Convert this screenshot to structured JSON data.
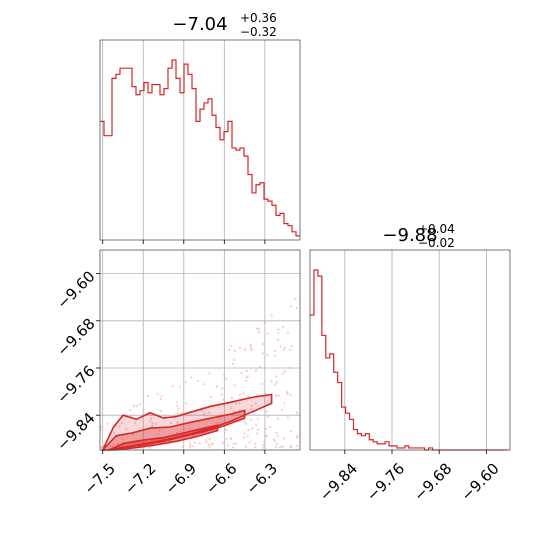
{
  "chart_data": {
    "type": "corner",
    "colors": {
      "series": "#d62728",
      "scatter": "#f2a6a6",
      "grid": "#b0b0b0",
      "frame": "#555555"
    },
    "params": [
      {
        "title": {
          "median": "−7.04",
          "plus": "+0.36",
          "minus": "−0.32"
        },
        "median": -7.04,
        "plus": 0.36,
        "minus": 0.32,
        "range": [
          -7.52,
          -6.04
        ],
        "ticks": [
          -7.5,
          -7.2,
          -6.9,
          -6.6,
          -6.3
        ],
        "tick_labels": [
          "−7.5",
          "−7.2",
          "−6.9",
          "−6.6",
          "−6.3"
        ],
        "hist": {
          "bin_width": 0.0296,
          "counts": [
            0.58,
            0.51,
            0.51,
            0.79,
            0.81,
            0.84,
            0.84,
            0.84,
            0.75,
            0.71,
            0.73,
            0.77,
            0.72,
            0.76,
            0.76,
            0.71,
            0.74,
            0.84,
            0.88,
            0.79,
            0.72,
            0.86,
            0.81,
            0.74,
            0.58,
            0.64,
            0.67,
            0.69,
            0.61,
            0.55,
            0.49,
            0.53,
            0.58,
            0.45,
            0.44,
            0.45,
            0.41,
            0.32,
            0.23,
            0.27,
            0.28,
            0.2,
            0.19,
            0.17,
            0.12,
            0.13,
            0.08,
            0.07,
            0.04,
            0.02
          ]
        }
      },
      {
        "title": {
          "median": "−9.88",
          "plus": "+0.04",
          "minus": "−0.02"
        },
        "median": -9.88,
        "plus": 0.04,
        "minus": 0.02,
        "range": [
          -9.899,
          -9.56
        ],
        "ticks": [
          -9.84,
          -9.76,
          -9.68,
          -9.6
        ],
        "tick_labels": [
          "−9.84",
          "−9.76",
          "−9.68",
          "−9.60"
        ],
        "hist": {
          "bin_width": 0.0067,
          "counts": [
            0.66,
            0.88,
            0.85,
            0.56,
            0.45,
            0.47,
            0.38,
            0.33,
            0.21,
            0.18,
            0.15,
            0.1,
            0.08,
            0.07,
            0.08,
            0.05,
            0.04,
            0.03,
            0.03,
            0.04,
            0.02,
            0.02,
            0.01,
            0.01,
            0.02,
            0.01,
            0.01,
            0.01,
            0.01,
            0.0,
            0.01,
            0.0,
            0.0,
            0.0,
            0.0,
            0.0,
            0.0,
            0.0,
            0.0,
            0.0,
            0.0,
            0.0,
            0.0,
            0.0,
            0.0,
            0.0,
            0.0,
            0.0,
            0.0,
            0.0
          ]
        }
      }
    ],
    "joint": {
      "x_param": 0,
      "y_param": 1,
      "contours": [
        {
          "level": "outer",
          "points": [
            [
              -7.5,
              -9.899
            ],
            [
              -7.42,
              -9.86
            ],
            [
              -7.35,
              -9.84
            ],
            [
              -7.25,
              -9.847
            ],
            [
              -7.15,
              -9.836
            ],
            [
              -7.05,
              -9.845
            ],
            [
              -6.95,
              -9.842
            ],
            [
              -6.85,
              -9.835
            ],
            [
              -6.7,
              -9.825
            ],
            [
              -6.55,
              -9.818
            ],
            [
              -6.4,
              -9.81
            ],
            [
              -6.25,
              -9.805
            ],
            [
              -6.25,
              -9.82
            ],
            [
              -6.4,
              -9.835
            ],
            [
              -6.55,
              -9.85
            ],
            [
              -6.7,
              -9.862
            ],
            [
              -6.85,
              -9.872
            ],
            [
              -7.0,
              -9.88
            ],
            [
              -7.15,
              -9.887
            ],
            [
              -7.3,
              -9.893
            ],
            [
              -7.45,
              -9.899
            ]
          ]
        },
        {
          "level": "mid",
          "points": [
            [
              -7.5,
              -9.899
            ],
            [
              -7.4,
              -9.875
            ],
            [
              -7.28,
              -9.87
            ],
            [
              -7.15,
              -9.862
            ],
            [
              -7.0,
              -9.86
            ],
            [
              -6.85,
              -9.852
            ],
            [
              -6.7,
              -9.845
            ],
            [
              -6.55,
              -9.838
            ],
            [
              -6.45,
              -9.832
            ],
            [
              -6.45,
              -9.845
            ],
            [
              -6.6,
              -9.858
            ],
            [
              -6.75,
              -9.868
            ],
            [
              -6.9,
              -9.876
            ],
            [
              -7.05,
              -9.884
            ],
            [
              -7.2,
              -9.89
            ],
            [
              -7.35,
              -9.895
            ],
            [
              -7.48,
              -9.899
            ]
          ]
        },
        {
          "level": "inner",
          "points": [
            [
              -7.45,
              -9.899
            ],
            [
              -7.35,
              -9.888
            ],
            [
              -7.2,
              -9.882
            ],
            [
              -7.05,
              -9.878
            ],
            [
              -6.9,
              -9.87
            ],
            [
              -6.75,
              -9.862
            ],
            [
              -6.65,
              -9.857
            ],
            [
              -6.65,
              -9.866
            ],
            [
              -6.8,
              -9.876
            ],
            [
              -6.95,
              -9.884
            ],
            [
              -7.1,
              -9.89
            ],
            [
              -7.25,
              -9.895
            ],
            [
              -7.4,
              -9.899
            ]
          ]
        }
      ]
    }
  }
}
